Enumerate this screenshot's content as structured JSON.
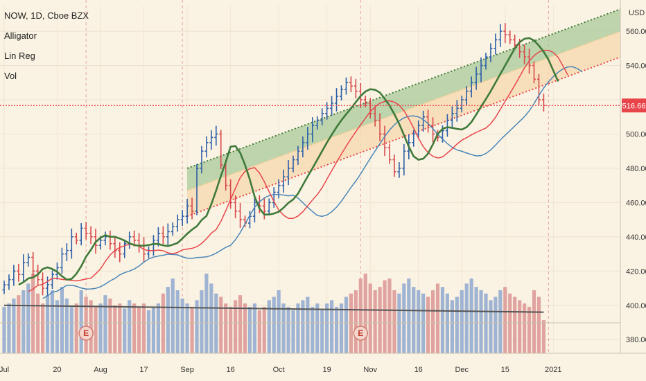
{
  "header": {
    "symbol_line": "NOW, 1D, Cboe BZX",
    "indicators": [
      "Alligator",
      "Lin Reg",
      "Vol"
    ]
  },
  "colors": {
    "background": "#faf3e3",
    "up_bar": "#2d5fa8",
    "down_bar": "#d8474b",
    "alligator_jaw": "#4a86b8",
    "alligator_teeth": "#e8454a",
    "alligator_lips": "#3f7a3a",
    "linreg_upper": "#3f7a3a",
    "linreg_lower": "#e8454a",
    "linreg_fill_upper": "#a9c99a",
    "linreg_fill_lower": "#f7d9b0",
    "volume_up": "#9fb3d3",
    "volume_down": "#e0a3a0",
    "volume_ma": "#555555",
    "last_price": "#e8454a"
  },
  "chart_data": {
    "type": "ohlc",
    "symbol": "NOW",
    "interval": "1D",
    "exchange": "Cboe BZX",
    "y_axis": {
      "unit": "USD",
      "range": [
        372,
        575
      ],
      "ticks": [
        380,
        400,
        420,
        440,
        460,
        480,
        500,
        520,
        540,
        560
      ],
      "tick_labels": [
        "380.00",
        "400.00",
        "420.00",
        "440.00",
        "460.00",
        "480.00",
        "500.00",
        "",
        "540.00",
        "560.00"
      ]
    },
    "x_axis": {
      "labels": [
        "Jul",
        "20",
        "Aug",
        "17",
        "Sep",
        "16",
        "Oct",
        "19",
        "Nov",
        "16",
        "Dec",
        "15",
        "2021"
      ]
    },
    "last_price": 516.66,
    "last_price_label": "516.66",
    "earnings_markers": [
      "E",
      "E"
    ],
    "series": {
      "close": [
        412,
        415,
        420,
        418,
        425,
        428,
        420,
        415,
        410,
        412,
        418,
        422,
        430,
        432,
        440,
        438,
        445,
        442,
        440,
        435,
        438,
        440,
        436,
        432,
        430,
        436,
        440,
        438,
        435,
        430,
        432,
        438,
        442,
        440,
        443,
        446,
        450,
        452,
        458,
        455,
        480,
        490,
        495,
        498,
        500,
        482,
        470,
        460,
        455,
        450,
        448,
        452,
        460,
        458,
        455,
        460,
        466,
        470,
        475,
        480,
        485,
        490,
        495,
        500,
        505,
        508,
        512,
        515,
        518,
        522,
        526,
        530,
        528,
        525,
        520,
        518,
        512,
        508,
        500,
        492,
        485,
        478,
        480,
        490,
        495,
        500,
        505,
        510,
        505,
        500,
        498,
        502,
        508,
        512,
        515,
        520,
        525,
        530,
        535,
        540,
        545,
        550,
        555,
        560,
        558,
        555,
        552,
        548,
        545,
        540,
        532,
        520,
        516.66
      ],
      "volume": [
        28,
        30,
        33,
        35,
        38,
        42,
        48,
        36,
        30,
        35,
        38,
        32,
        40,
        33,
        28,
        30,
        38,
        34,
        32,
        28,
        30,
        35,
        33,
        29,
        30,
        27,
        32,
        30,
        28,
        30,
        26,
        28,
        30,
        36,
        40,
        45,
        38,
        33,
        30,
        28,
        32,
        38,
        48,
        42,
        36,
        34,
        30,
        28,
        32,
        35,
        30,
        28,
        30,
        26,
        28,
        32,
        34,
        38,
        30,
        28,
        26,
        30,
        32,
        34,
        28,
        30,
        26,
        30,
        32,
        28,
        30,
        34,
        36,
        38,
        45,
        48,
        42,
        38,
        40,
        44,
        45,
        38,
        36,
        42,
        45,
        40,
        38,
        36,
        34,
        38,
        42,
        40,
        36,
        32,
        34,
        38,
        42,
        45,
        40,
        38,
        36,
        32,
        34,
        38,
        40,
        36,
        34,
        32,
        30,
        28,
        38,
        34,
        20
      ],
      "volume_ma_start": 400,
      "volume_ma_end": 396
    }
  }
}
